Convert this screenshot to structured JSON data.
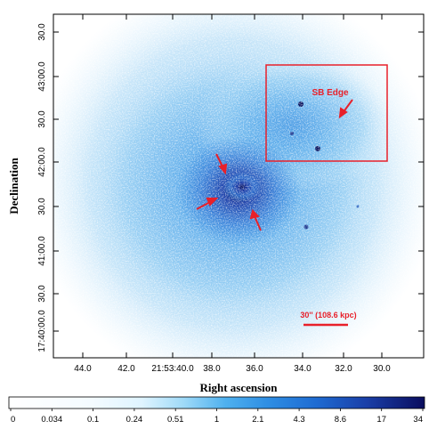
{
  "image": {
    "type": "x-ray surface brightness map",
    "colormap": "blues",
    "xlabel": "Right ascension",
    "ylabel": "Declination",
    "x_ticks": [
      "44.0",
      "42.0",
      "21:53:40.0",
      "38.0",
      "36.0",
      "34.0",
      "32.0",
      "30.0"
    ],
    "y_ticks": [
      "17:40:00.0",
      "30.0",
      "41:00.0",
      "30.0",
      "42:00.0",
      "30.0",
      "43:00.0",
      "30.0"
    ],
    "annotations": {
      "edge_label": "SB Edge",
      "scale_label": "30'' (108.6 kpc)"
    },
    "colorbar_ticks": [
      "0",
      "0.034",
      "0.1",
      "0.24",
      "0.51",
      "1",
      "2.1",
      "4.3",
      "8.6",
      "17",
      "34"
    ],
    "colors": {
      "annotation": "#e8202a",
      "halo": "#8ccaf2",
      "core": "#0a1560"
    }
  }
}
